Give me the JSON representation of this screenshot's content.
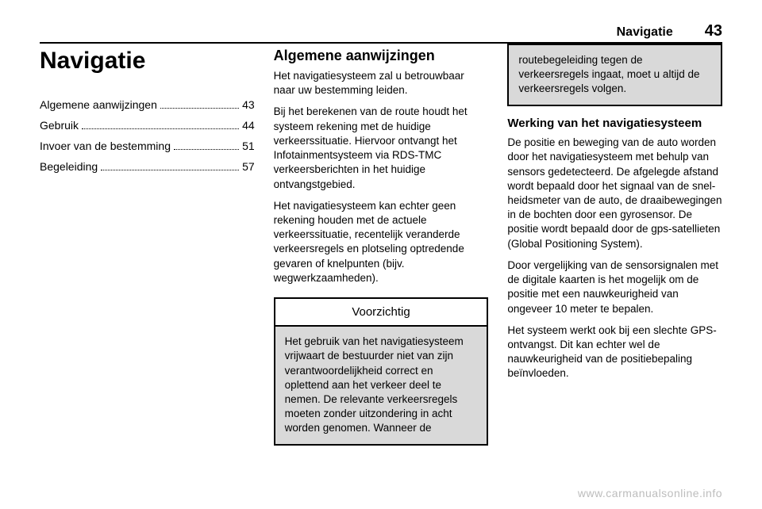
{
  "header": {
    "section": "Navigatie",
    "page_number": "43"
  },
  "col1": {
    "title": "Navigatie",
    "toc": [
      {
        "label": "Algemene aanwijzingen",
        "page": "43"
      },
      {
        "label": "Gebruik",
        "page": "44"
      },
      {
        "label": "Invoer van de bestemming",
        "page": "51"
      },
      {
        "label": "Begeleiding",
        "page": "57"
      }
    ]
  },
  "col2": {
    "heading": "Algemene aanwijzingen",
    "paragraphs": [
      "Het navigatiesysteem zal u betrouw­baar naar uw bestemming leiden.",
      "Bij het berekenen van de route houdt het systeem rekening met de huidige verkeerssituatie. Hiervoor ontvangt het Infotainmentsysteem via RDS-TMC verkeersberichten in het huidige ontvangstgebied.",
      "Het navigatiesysteem kan echter geen rekening houden met de actuele verkeerssituatie, recentelijk veran­derde verkeersregels en plotseling optredende gevaren of knelpunten (bijv. wegwerkzaamheden)."
    ],
    "caution": {
      "title": "Voorzichtig",
      "body": "Het gebruik van het navigatiesys­teem vrijwaart de bestuurder niet van zijn verantwoordelijkheid correct en oplettend aan het verkeer deel te nemen. De rele­vante verkeersregels moeten zonder uitzondering in acht worden genomen. Wanneer de"
    }
  },
  "col3": {
    "caution_continued": "routebegeleiding tegen de verkeersregels ingaat, moet u altijd de verkeersregels volgen.",
    "subheading": "Werking van het navigatiesysteem",
    "paragraphs": [
      "De positie en beweging van de auto worden door het navigatiesysteem met behulp van sensors gedetec­teerd. De afgelegde afstand wordt bepaald door het signaal van de snel­heidsmeter van de auto, de draaibe­wegingen in de bochten door een gyrosensor. De positie wordt bepaald door de gps-satellieten (Global Posi­tioning System).",
      "Door vergelijking van de sensorsig­nalen met de digitale kaarten is het mogelijk om de positie met een nauw­keurigheid van ongeveer 10 meter te bepalen.",
      "Het systeem werkt ook bij een slechte GPS-ontvangst. Dit kan echter wel de nauwkeurigheid van de positiebepa­ling beïnvloeden."
    ]
  },
  "watermark": "www.carmanualsonline.info"
}
